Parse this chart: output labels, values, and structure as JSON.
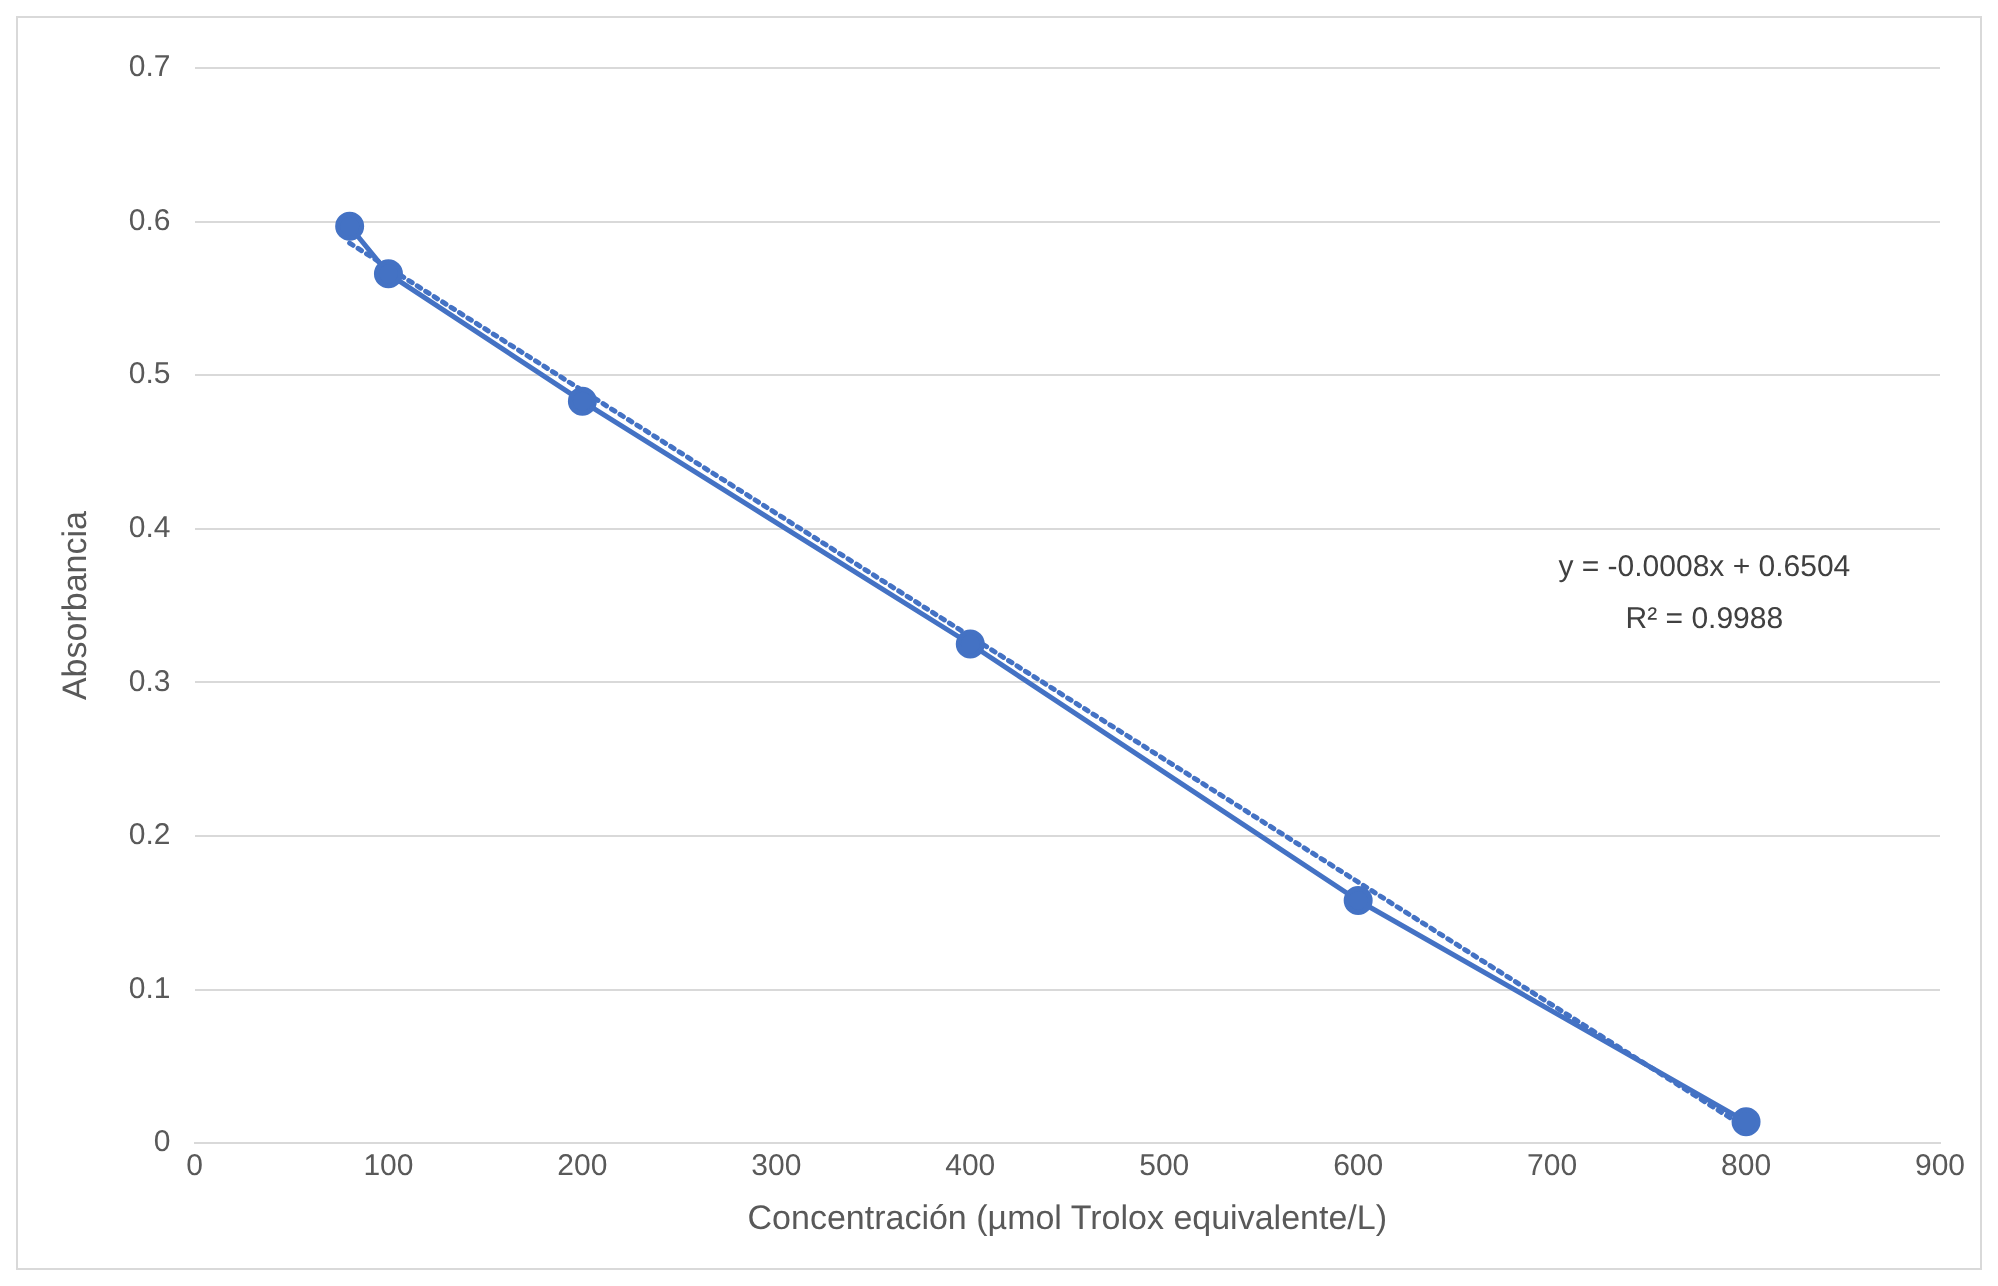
{
  "chart_data": {
    "type": "line",
    "xlabel": "Concentración (µmol Trolox equivalente/L)",
    "ylabel": "Absorbancia",
    "xlim": [
      0,
      900
    ],
    "xticks": [
      0,
      100,
      200,
      300,
      400,
      500,
      600,
      700,
      800,
      900
    ],
    "ylim": [
      0,
      0.7
    ],
    "yticks": [
      0,
      0.1,
      0.2,
      0.3,
      0.4,
      0.5,
      0.6,
      0.7
    ],
    "grid": "y",
    "legend": false,
    "series": [
      {
        "color": "#4472c4",
        "marker": "circle",
        "line_style": "solid",
        "x": [
          80,
          100,
          200,
          400,
          600,
          800
        ],
        "values": [
          0.597,
          0.566,
          0.483,
          0.325,
          0.158,
          0.014
        ]
      },
      {
        "color": "#4472c4",
        "marker": "none",
        "line_style": "dotted",
        "x": [
          80,
          800
        ],
        "values": [
          0.586,
          0.01
        ]
      }
    ],
    "annotations": [
      "y = -0.0008x + 0.6504",
      "R² = 0.9988"
    ]
  }
}
